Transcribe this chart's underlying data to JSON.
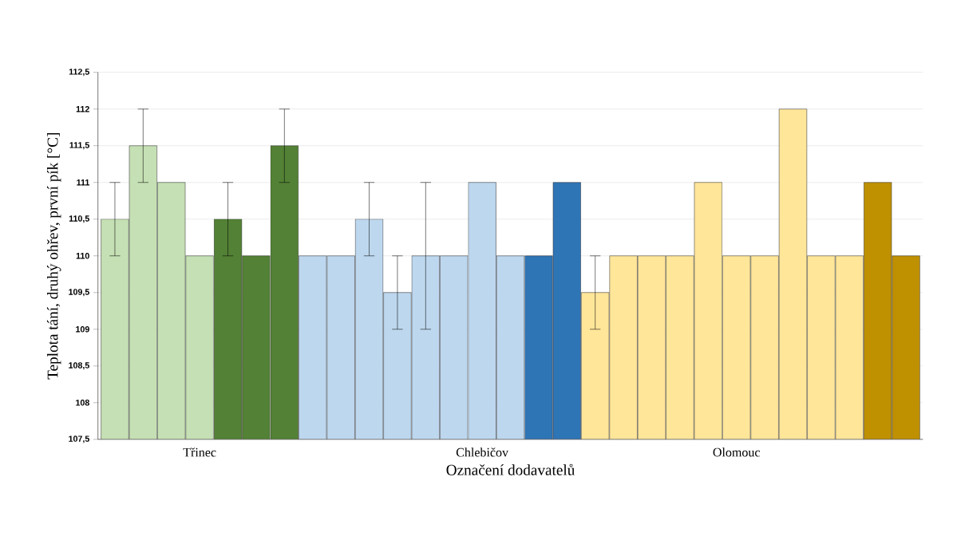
{
  "chart_data": {
    "type": "bar",
    "xlabel": "Označení dodavatelů",
    "ylabel": "Teplota tání, druhý ohřev, první pík [°C]",
    "categories": [
      null,
      null,
      null,
      "Třinec",
      null,
      null,
      null,
      null,
      null,
      null,
      null,
      null,
      null,
      "Chlebičov",
      null,
      null,
      null,
      null,
      null,
      null,
      null,
      null,
      "Olomouc",
      null,
      null,
      null,
      null,
      null,
      null
    ],
    "values": [
      110.5,
      111.5,
      111,
      110,
      110.5,
      110,
      111.5,
      110,
      110,
      110.5,
      109.5,
      110,
      110,
      111,
      110,
      110,
      111,
      109.5,
      110,
      110,
      110,
      111,
      110,
      110,
      112,
      110,
      110,
      111,
      110
    ],
    "errors": [
      0.5,
      0.5,
      null,
      null,
      0.5,
      null,
      0.5,
      null,
      null,
      0.5,
      0.5,
      1,
      null,
      null,
      null,
      null,
      null,
      0.5,
      null,
      null,
      null,
      null,
      null,
      null,
      null,
      null,
      null,
      null,
      null
    ],
    "colors": [
      "#c5e0b4",
      "#c5e0b4",
      "#c5e0b4",
      "#c5e0b4",
      "#538135",
      "#538135",
      "#538135",
      "#bdd7ee",
      "#bdd7ee",
      "#bdd7ee",
      "#bdd7ee",
      "#bdd7ee",
      "#bdd7ee",
      "#bdd7ee",
      "#bdd7ee",
      "#2e75b6",
      "#2e75b6",
      "#ffe699",
      "#ffe699",
      "#ffe699",
      "#ffe699",
      "#ffe699",
      "#ffe699",
      "#ffe699",
      "#ffe699",
      "#ffe699",
      "#ffe699",
      "#bf9000",
      "#bf9000"
    ],
    "ylim": [
      107.5,
      112.5
    ],
    "yticks": [
      {
        "value": 107.5,
        "label": "107,5"
      },
      108,
      {
        "value": 108.5,
        "label": "108,5"
      },
      109,
      {
        "value": 109.5,
        "label": "109,5"
      },
      110,
      {
        "value": 110.5,
        "label": "110,5"
      },
      111,
      {
        "value": 111.5,
        "label": "111,5"
      },
      112,
      {
        "value": 112.5,
        "label": "112,5"
      }
    ],
    "grid": "y"
  }
}
